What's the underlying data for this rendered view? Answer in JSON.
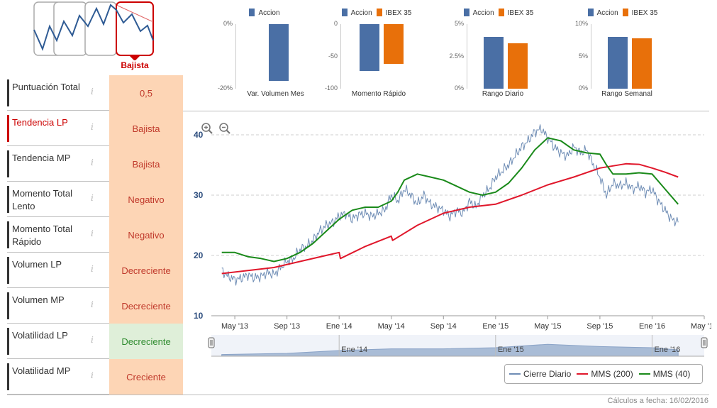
{
  "trend_widget": {
    "label": "Bajista",
    "accent": "#cc0000"
  },
  "scores": [
    {
      "label": "Puntuación Total",
      "value": "0,5",
      "active": false,
      "good": false
    },
    {
      "label": "Tendencia LP",
      "value": "Bajista",
      "active": true,
      "good": false
    },
    {
      "label": "Tendencia MP",
      "value": "Bajista",
      "active": false,
      "good": false
    },
    {
      "label": "Momento Total Lento",
      "value": "Negativo",
      "active": false,
      "good": false
    },
    {
      "label": "Momento Total Rápido",
      "value": "Negativo",
      "active": false,
      "good": false
    },
    {
      "label": "Volumen LP",
      "value": "Decreciente",
      "active": false,
      "good": false
    },
    {
      "label": "Volumen MP",
      "value": "Decreciente",
      "active": false,
      "good": false
    },
    {
      "label": "Volatilidad LP",
      "value": "Decreciente",
      "active": false,
      "good": true
    },
    {
      "label": "Volatilidad MP",
      "value": "Creciente",
      "active": false,
      "good": false
    }
  ],
  "info_glyph": "i",
  "colors": {
    "accion": "#4a6fa5",
    "ibex": "#e8700a",
    "cierre": "#6f8db5",
    "mms200": "#e0172b",
    "mms40": "#1a8a1a"
  },
  "mini_charts": [
    {
      "type": "bar",
      "title": "Var. Volumen Mes",
      "legend": [
        "Accion"
      ],
      "ticks": [
        "0%",
        "-20%"
      ],
      "ylim": [
        -20,
        0
      ],
      "values": [
        -17.5
      ]
    },
    {
      "type": "bar",
      "title": "Momento Rápido",
      "legend": [
        "Accion",
        "IBEX 35"
      ],
      "ticks": [
        "0",
        "-50",
        "-100"
      ],
      "ylim": [
        -100,
        0
      ],
      "values": [
        -73,
        -62
      ]
    },
    {
      "type": "bar",
      "title": "Rango Diario",
      "legend": [
        "Accion",
        "IBEX 35"
      ],
      "ticks": [
        "5%",
        "2.5%",
        "0%"
      ],
      "ylim": [
        0,
        5
      ],
      "values": [
        4.0,
        3.5
      ]
    },
    {
      "type": "bar",
      "title": "Rango Semanal",
      "legend": [
        "Accion",
        "IBEX 35"
      ],
      "ticks": [
        "10%",
        "5%",
        "0%"
      ],
      "ylim": [
        0,
        10
      ],
      "values": [
        8.0,
        7.8
      ]
    }
  ],
  "chart_data": {
    "type": "line",
    "ylim": [
      10,
      40
    ],
    "yticks": [
      "10",
      "20",
      "30",
      "40"
    ],
    "xticks": [
      "May '13",
      "Sep '13",
      "Ene '14",
      "May '14",
      "Sep '14",
      "Ene '15",
      "May '15",
      "Sep '15",
      "Ene '16",
      "May '16"
    ],
    "navigator_labels": [
      "Ene '14",
      "Ene '15",
      "Ene '16"
    ],
    "x_months": [
      0,
      4,
      8,
      12,
      16,
      20,
      24,
      28,
      32,
      36
    ],
    "series": [
      {
        "name": "Cierre Diario",
        "points": [
          [
            -1,
            17.5
          ],
          [
            -0.5,
            16.5
          ],
          [
            0,
            16
          ],
          [
            0.5,
            16.2
          ],
          [
            1,
            16.8
          ],
          [
            1.5,
            16.3
          ],
          [
            2,
            16.5
          ],
          [
            2.5,
            17.2
          ],
          [
            3,
            16.8
          ],
          [
            3.5,
            18
          ],
          [
            4,
            19
          ],
          [
            4.5,
            19.5
          ],
          [
            5,
            21
          ],
          [
            5.5,
            21.5
          ],
          [
            6,
            22.5
          ],
          [
            6.5,
            24
          ],
          [
            7,
            25
          ],
          [
            7.5,
            25.5
          ],
          [
            8,
            26.5
          ],
          [
            8.5,
            27
          ],
          [
            9,
            26
          ],
          [
            9.5,
            26.8
          ],
          [
            10,
            27
          ],
          [
            10.5,
            26.5
          ],
          [
            11,
            27
          ],
          [
            11.5,
            27.5
          ],
          [
            12,
            30
          ],
          [
            12.5,
            29
          ],
          [
            13,
            31
          ],
          [
            13.5,
            30
          ],
          [
            14,
            28.5
          ],
          [
            14.5,
            30
          ],
          [
            15,
            28.5
          ],
          [
            15.5,
            28
          ],
          [
            16,
            27.5
          ],
          [
            16.5,
            26.5
          ],
          [
            17,
            27.5
          ],
          [
            17.5,
            27
          ],
          [
            18,
            29
          ],
          [
            18.5,
            28
          ],
          [
            19,
            30
          ],
          [
            19.5,
            31
          ],
          [
            20,
            33
          ],
          [
            20.5,
            34
          ],
          [
            21,
            35
          ],
          [
            21.5,
            36.5
          ],
          [
            22,
            38
          ],
          [
            22.5,
            39
          ],
          [
            23,
            40.5
          ],
          [
            23.5,
            41
          ],
          [
            24,
            39.5
          ],
          [
            24.5,
            38
          ],
          [
            25,
            37
          ],
          [
            25.5,
            36.5
          ],
          [
            26,
            38
          ],
          [
            26.5,
            37
          ],
          [
            27,
            37.5
          ],
          [
            27.5,
            35
          ],
          [
            28,
            33
          ],
          [
            28.5,
            30
          ],
          [
            29,
            32
          ],
          [
            29.5,
            31.5
          ],
          [
            30,
            32
          ],
          [
            30.5,
            31
          ],
          [
            31,
            31.5
          ],
          [
            31.5,
            30.5
          ],
          [
            32,
            31
          ],
          [
            32.5,
            29
          ],
          [
            33,
            27.5
          ],
          [
            33.5,
            26
          ],
          [
            34,
            25.5
          ]
        ]
      },
      {
        "name": "MMS (200)",
        "points": [
          [
            -1,
            17
          ],
          [
            1,
            17.5
          ],
          [
            3,
            18
          ],
          [
            5,
            19
          ],
          [
            7,
            20
          ],
          [
            8,
            20.5
          ],
          [
            8.1,
            19.5
          ],
          [
            10,
            21.5
          ],
          [
            12,
            23.2
          ],
          [
            12.1,
            22.5
          ],
          [
            14,
            25
          ],
          [
            16,
            27
          ],
          [
            18,
            28
          ],
          [
            20,
            28.5
          ],
          [
            22,
            30
          ],
          [
            24,
            31.7
          ],
          [
            26,
            33
          ],
          [
            28,
            34.5
          ],
          [
            30,
            35.2
          ],
          [
            31,
            35.1
          ],
          [
            32,
            34.5
          ],
          [
            33,
            33.8
          ],
          [
            34,
            33
          ]
        ]
      },
      {
        "name": "MMS (40)",
        "points": [
          [
            -1,
            20.5
          ],
          [
            0,
            20.5
          ],
          [
            1,
            19.8
          ],
          [
            2,
            19.5
          ],
          [
            3,
            19
          ],
          [
            4,
            19.5
          ],
          [
            5,
            20.5
          ],
          [
            6,
            22
          ],
          [
            7,
            24
          ],
          [
            8,
            26
          ],
          [
            9,
            27.5
          ],
          [
            10,
            28
          ],
          [
            11,
            28
          ],
          [
            12,
            29
          ],
          [
            12.5,
            30.5
          ],
          [
            13,
            32.5
          ],
          [
            14,
            33.5
          ],
          [
            15,
            33
          ],
          [
            16,
            32.5
          ],
          [
            17,
            31.5
          ],
          [
            18,
            30.5
          ],
          [
            19,
            30
          ],
          [
            20,
            30.5
          ],
          [
            21,
            32
          ],
          [
            22,
            34.5
          ],
          [
            23,
            37.5
          ],
          [
            24,
            39.5
          ],
          [
            25,
            39
          ],
          [
            26,
            37.5
          ],
          [
            27,
            37
          ],
          [
            28,
            36.8
          ],
          [
            28.5,
            35
          ],
          [
            29,
            33.5
          ],
          [
            30,
            33.5
          ],
          [
            31,
            33.7
          ],
          [
            32,
            33.5
          ],
          [
            33,
            31
          ],
          [
            34,
            28.5
          ]
        ]
      }
    ],
    "legend_labels": [
      "Cierre Diario",
      "MMS (200)",
      "MMS (40)"
    ],
    "navigator": [
      [
        -1,
        18
      ],
      [
        4,
        20
      ],
      [
        8,
        25
      ],
      [
        12,
        28
      ],
      [
        16,
        28
      ],
      [
        20,
        30
      ],
      [
        24,
        36
      ],
      [
        28,
        32
      ],
      [
        32,
        30
      ],
      [
        34,
        26
      ]
    ]
  },
  "footer": "Cálculos a fecha: 16/02/2016"
}
